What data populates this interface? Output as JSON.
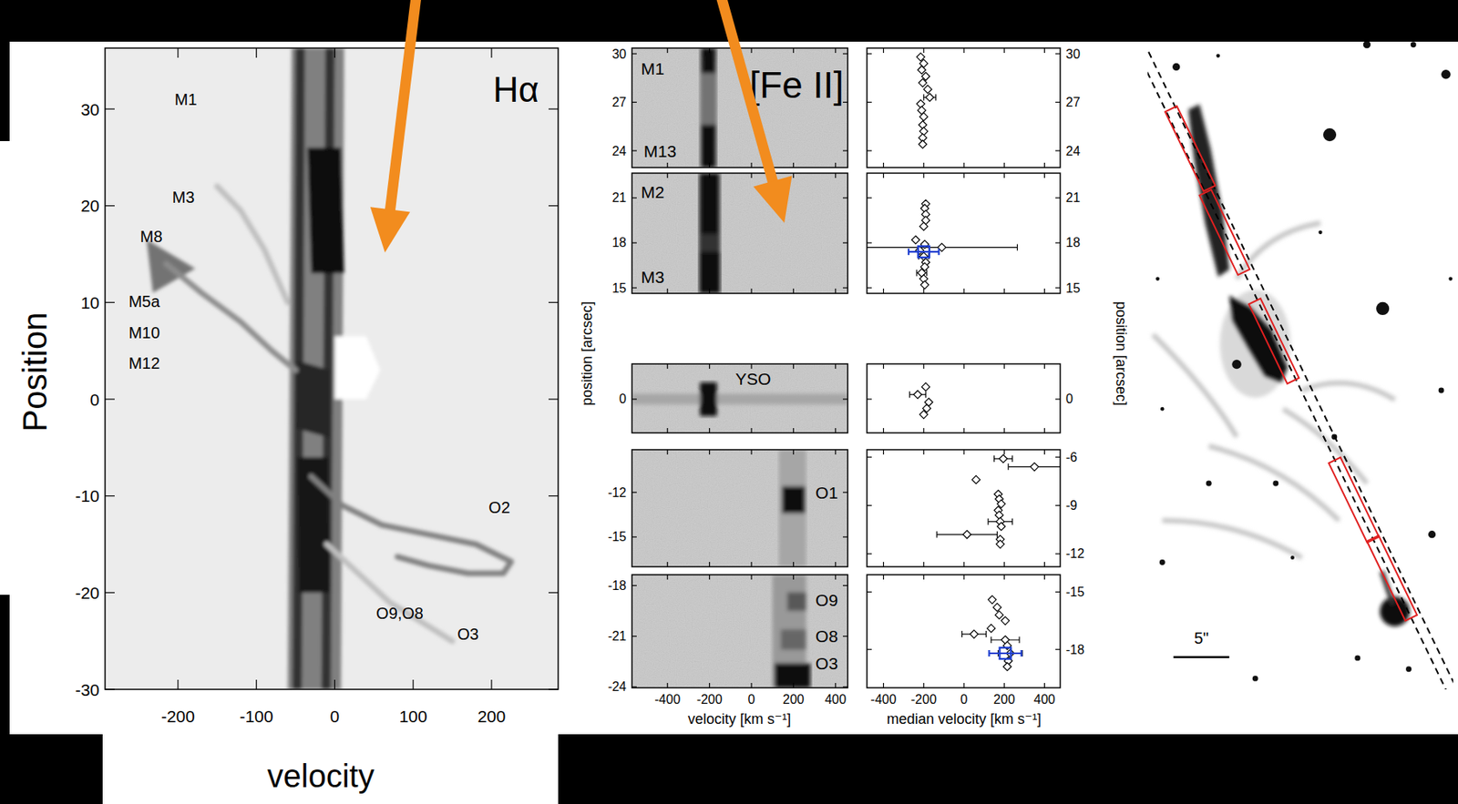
{
  "chart_data": [
    {
      "type": "pv_diagram",
      "title": "Hα",
      "xlabel": "velocity",
      "ylabel": "Position",
      "xlim": [
        -293,
        285
      ],
      "ylim": [
        -30,
        36.3
      ],
      "xticks": [
        -200,
        -100,
        0,
        100,
        200
      ],
      "yticks": [
        -30,
        -20,
        -10,
        0,
        10,
        20,
        30
      ],
      "annotations": [
        {
          "text": "M1",
          "x": -190,
          "y": 31.0
        },
        {
          "text": "M3",
          "x": -193,
          "y": 20.9
        },
        {
          "text": "M8",
          "x": -234,
          "y": 16.8
        },
        {
          "text": "M5a",
          "x": -243,
          "y": 10.1
        },
        {
          "text": "M10",
          "x": -243,
          "y": 6.9
        },
        {
          "text": "M12",
          "x": -243,
          "y": 3.7
        },
        {
          "text": "O2",
          "x": 210,
          "y": -11.2
        },
        {
          "text": "O9,O8",
          "x": 83,
          "y": -22.1
        },
        {
          "text": "O3",
          "x": 170,
          "y": -24.3
        }
      ],
      "series": [
        {
          "type": "area",
          "x": [
            -55,
            12,
            8,
            -60
          ],
          "values": [
            36.3,
            36.3,
            -30,
            -30
          ],
          "intensity": 0.5
        },
        {
          "type": "area",
          "x": [
            -50,
            -38,
            -42,
            -54
          ],
          "values": [
            36.3,
            36.3,
            -30,
            -30
          ],
          "intensity": 0.8
        },
        {
          "type": "area",
          "x": [
            -12,
            0,
            -5,
            -17
          ],
          "values": [
            36.3,
            36.3,
            -30,
            -30
          ],
          "intensity": 0.8
        },
        {
          "type": "area",
          "x": [
            -35,
            8,
            12,
            -30
          ],
          "values": [
            26,
            26,
            13,
            13
          ],
          "intensity": 0.95
        },
        {
          "type": "area",
          "x": [
            -48,
            -8,
            -6,
            -46
          ],
          "values": [
            -6,
            -6,
            -20,
            -20
          ],
          "intensity": 0.9
        },
        {
          "type": "area",
          "x": [
            -48,
            -6,
            -6,
            -50
          ],
          "values": [
            4,
            3,
            -4,
            -3
          ],
          "intensity": 0.85
        },
        {
          "type": "area",
          "x": [
            0,
            40,
            58,
            40,
            0
          ],
          "values": [
            6.5,
            6.5,
            3,
            0,
            0
          ],
          "intensity": 0
        },
        {
          "type": "area",
          "x": [
            -240,
            -178,
            -232
          ],
          "values": [
            16.5,
            13.5,
            11
          ],
          "intensity": 0.55
        },
        {
          "type": "line",
          "x": [
            -150,
            -120,
            -90,
            -60
          ],
          "values": [
            22,
            19.5,
            15.5,
            10
          ],
          "intensity": 0.25
        },
        {
          "type": "line",
          "x": [
            -50,
            -80,
            -120,
            -170,
            -215
          ],
          "values": [
            3,
            5,
            8,
            11,
            14
          ],
          "intensity": 0.45
        },
        {
          "type": "line",
          "x": [
            -30,
            10,
            60,
            120,
            180,
            225,
            215,
            170,
            120,
            80
          ],
          "values": [
            -8,
            -11,
            -13,
            -14,
            -15,
            -16.8,
            -18,
            -18,
            -17.2,
            -16.3
          ],
          "intensity": 0.5
        },
        {
          "type": "line",
          "x": [
            -10,
            30,
            70,
            110,
            150
          ],
          "values": [
            -15,
            -18,
            -21,
            -23,
            -25
          ],
          "intensity": 0.25
        }
      ]
    },
    {
      "type": "pv_stack",
      "title": "[Fe II]",
      "xlabel": "velocity [km s⁻¹]",
      "ylabel": "position [arcsec]",
      "xlim": [
        -569,
        458
      ],
      "xticks": [
        -400,
        -200,
        0,
        200,
        400
      ],
      "panels": [
        {
          "ylim": [
            22.96,
            30.35
          ],
          "yticks": [
            30,
            27,
            24
          ],
          "annotations": [
            {
              "text": "M1",
              "x": -470,
              "y": 29.08
            },
            {
              "text": "M13",
              "x": -435,
              "y": 24.0
            }
          ],
          "series": [
            {
              "type": "area",
              "x": [
                -245,
                -165,
                -165,
                -245
              ],
              "values": [
                30.35,
                30.35,
                22.96,
                22.96
              ],
              "intensity": 0.55
            },
            {
              "type": "area",
              "x": [
                -240,
                -170,
                -172,
                -238
              ],
              "values": [
                30.35,
                30.35,
                28.8,
                28.8
              ],
              "intensity": 0.95
            },
            {
              "type": "area",
              "x": [
                -240,
                -170,
                -170,
                -240
              ],
              "values": [
                25.6,
                25.6,
                22.96,
                22.96
              ],
              "intensity": 0.95
            }
          ]
        },
        {
          "ylim": [
            14.63,
            22.65
          ],
          "yticks": [
            21,
            18,
            15
          ],
          "annotations": [
            {
              "text": "M2",
              "x": -470,
              "y": 21.37
            },
            {
              "text": "M3",
              "x": -470,
              "y": 15.7
            }
          ],
          "series": [
            {
              "type": "area",
              "x": [
                -250,
                -150,
                -150,
                -250
              ],
              "values": [
                22.65,
                22.65,
                14.63,
                14.63
              ],
              "intensity": 0.8
            },
            {
              "type": "area",
              "x": [
                -240,
                -160,
                -160,
                -240
              ],
              "values": [
                22.65,
                22.65,
                18.6,
                18.6
              ],
              "intensity": 0.97
            },
            {
              "type": "area",
              "x": [
                -245,
                -150,
                -150,
                -245
              ],
              "values": [
                17.4,
                17.4,
                14.63,
                14.63
              ],
              "intensity": 0.97
            }
          ]
        },
        {
          "ylim": [
            -2.2,
            2.3
          ],
          "yticks": [
            0
          ],
          "annotations": [
            {
              "text": "YSO",
              "x": 8,
              "y": 1.33
            }
          ],
          "series": [
            {
              "type": "area",
              "x": [
                -569,
                458,
                458,
                -569
              ],
              "values": [
                0.35,
                0.35,
                -0.35,
                -0.35
              ],
              "intensity": 0.35
            },
            {
              "type": "area",
              "x": [
                -245,
                -165,
                -165,
                -245
              ],
              "values": [
                1.1,
                1.1,
                -1.1,
                -1.1
              ],
              "intensity": 0.97
            }
          ]
        },
        {
          "ylim": [
            -17,
            -9.13
          ],
          "yticks": [
            -12,
            -15
          ],
          "annotations": [
            {
              "text": "O1",
              "x": 358,
              "y": -12.0
            }
          ],
          "series": [
            {
              "type": "area",
              "x": [
                130,
                260,
                260,
                130
              ],
              "values": [
                -9.13,
                -9.13,
                -17,
                -17
              ],
              "intensity": 0.35
            },
            {
              "type": "area",
              "x": [
                145,
                255,
                255,
                145
              ],
              "values": [
                -11.6,
                -11.6,
                -13.4,
                -13.4
              ],
              "intensity": 0.97
            }
          ]
        },
        {
          "ylim": [
            -24.05,
            -17.36
          ],
          "yticks": [
            -18,
            -21,
            -24
          ],
          "annotations": [
            {
              "text": "O9",
              "x": 358,
              "y": -18.86
            },
            {
              "text": "O8",
              "x": 358,
              "y": -21.0
            },
            {
              "text": "O3",
              "x": 358,
              "y": -22.6
            }
          ],
          "series": [
            {
              "type": "area",
              "x": [
                100,
                260,
                260,
                100
              ],
              "values": [
                -17.36,
                -17.36,
                -24.05,
                -24.05
              ],
              "intensity": 0.4
            },
            {
              "type": "area",
              "x": [
                170,
                260,
                260,
                170
              ],
              "values": [
                -18.4,
                -18.4,
                -19.5,
                -19.5
              ],
              "intensity": 0.65
            },
            {
              "type": "area",
              "x": [
                140,
                260,
                260,
                140
              ],
              "values": [
                -20.6,
                -20.6,
                -21.8,
                -21.8
              ],
              "intensity": 0.6
            },
            {
              "type": "area",
              "x": [
                110,
                280,
                280,
                110
              ],
              "values": [
                -22.6,
                -22.6,
                -24.05,
                -24.05
              ],
              "intensity": 0.95
            }
          ]
        }
      ]
    },
    {
      "type": "scatter_stack",
      "xlabel": "median velocity [km s⁻¹]",
      "ylabel": "position [arcsec]",
      "xlim": [
        -482,
        478
      ],
      "xticks": [
        -400,
        -200,
        0,
        200,
        400
      ],
      "panels": [
        {
          "ylim": [
            22.96,
            30.35
          ],
          "yticks": [
            30,
            27,
            24
          ],
          "series": [
            {
              "marker": "diamond",
              "color": "#000000",
              "x": [
                -215,
                -200,
                -210,
                -190,
                -205,
                -180,
                -170,
                -215,
                -210,
                -200,
                -205,
                -200,
                -205,
                -205
              ],
              "values": [
                29.8,
                29.4,
                29.0,
                28.6,
                28.2,
                27.8,
                27.3,
                26.9,
                26.5,
                26.1,
                25.6,
                25.2,
                24.8,
                24.4
              ],
              "errors": [
                null,
                null,
                null,
                null,
                null,
                null,
                30,
                null,
                null,
                null,
                null,
                null,
                null,
                null
              ]
            }
          ]
        },
        {
          "ylim": [
            14.63,
            22.65
          ],
          "yticks": [
            21,
            18,
            15
          ],
          "series": [
            {
              "marker": "diamond",
              "color": "#000000",
              "x": [
                -190,
                -195,
                -190,
                -190,
                -200,
                -240,
                -110,
                -195,
                -220,
                -200,
                -190,
                -195,
                -210,
                -200,
                -195
              ],
              "values": [
                20.6,
                20.3,
                19.9,
                19.5,
                19.1,
                18.2,
                17.7,
                17.9,
                17.5,
                17.1,
                16.7,
                16.4,
                16.0,
                15.6,
                15.2
              ],
              "errors": [
                null,
                null,
                null,
                null,
                null,
                null,
                375,
                null,
                null,
                25,
                null,
                null,
                25,
                null,
                null
              ]
            },
            {
              "marker": "square",
              "color": "#2040d0",
              "x": [
                -200
              ],
              "values": [
                17.4
              ],
              "errors": [
                75
              ]
            }
          ]
        },
        {
          "ylim": [
            -2.2,
            2.3
          ],
          "yticks": [
            0
          ],
          "series": [
            {
              "marker": "diamond",
              "color": "#000000",
              "x": [
                -190,
                -230,
                -175,
                -185,
                -200
              ],
              "values": [
                0.8,
                0.3,
                -0.2,
                -0.6,
                -1.0
              ],
              "errors": [
                null,
                40,
                null,
                null,
                null
              ]
            }
          ]
        },
        {
          "ylim": [
            -12.8,
            -5.54
          ],
          "yticks": [
            -6,
            -9,
            -12
          ],
          "series": [
            {
              "marker": "diamond",
              "color": "#000000",
              "x": [
                195,
                350,
                60,
                170,
                175,
                185,
                170,
                175,
                180,
                185,
                15,
                180,
                180
              ],
              "values": [
                -6.1,
                -6.6,
                -7.4,
                -8.3,
                -8.6,
                -8.9,
                -9.3,
                -9.6,
                -10.0,
                -10.3,
                -10.8,
                -11.1,
                -11.4
              ],
              "errors": [
                45,
                130,
                null,
                null,
                null,
                null,
                null,
                null,
                60,
                null,
                150,
                null,
                null
              ]
            }
          ]
        },
        {
          "ylim": [
            -20.0,
            -14.1
          ],
          "yticks": [
            -15,
            -18
          ],
          "series": [
            {
              "marker": "diamond",
              "color": "#000000",
              "x": [
                140,
                165,
                175,
                205,
                135,
                50,
                205,
                215,
                230,
                220,
                215
              ],
              "values": [
                -15.4,
                -15.8,
                -16.2,
                -16.5,
                -16.9,
                -17.2,
                -17.5,
                -17.8,
                -18.2,
                -18.6,
                -18.9
              ],
              "errors": [
                null,
                null,
                null,
                null,
                null,
                60,
                70,
                null,
                60,
                null,
                null
              ]
            },
            {
              "marker": "square",
              "color": "#2040d0",
              "x": [
                205
              ],
              "values": [
                -18.2
              ],
              "errors": [
                80
              ]
            }
          ]
        }
      ]
    },
    {
      "type": "image",
      "scale_label": "5\""
    }
  ]
}
